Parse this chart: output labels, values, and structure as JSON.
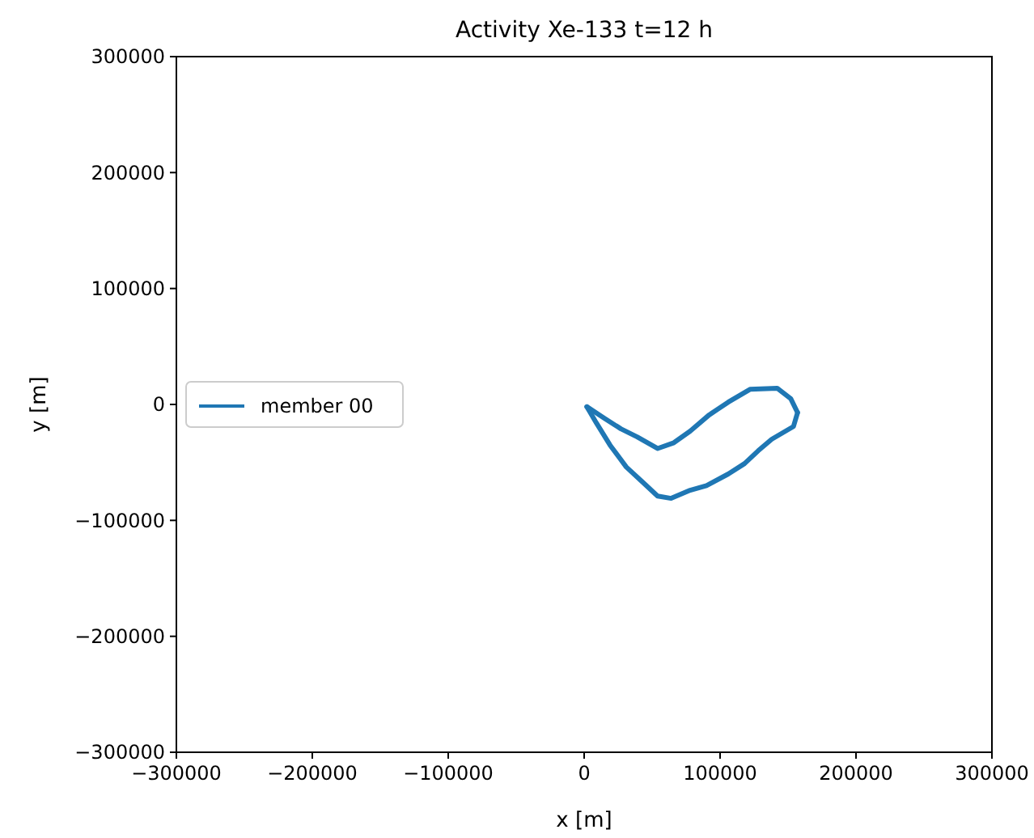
{
  "chart_data": {
    "type": "line",
    "title": "Activity Xe-133 t=12 h",
    "xlabel": "x [m]",
    "ylabel": "y [m]",
    "xlim": [
      -300000,
      300000
    ],
    "ylim": [
      -300000,
      300000
    ],
    "xticks": [
      {
        "value": -300000,
        "label": "−300000"
      },
      {
        "value": -200000,
        "label": "−200000"
      },
      {
        "value": -100000,
        "label": "−100000"
      },
      0,
      100000,
      200000,
      300000
    ],
    "yticks": [
      {
        "value": -300000,
        "label": "−300000"
      },
      {
        "value": -200000,
        "label": "−200000"
      },
      {
        "value": -100000,
        "label": "−100000"
      },
      0,
      100000,
      200000,
      300000
    ],
    "grid": false,
    "legend": "center left",
    "marker": "none",
    "line_style": "solid",
    "series": [
      {
        "name": "member 00",
        "color": "#1f77b4",
        "x": [
          2000,
          15000,
          27000,
          39000,
          54000,
          66000,
          78000,
          92000,
          106000,
          122000,
          142000,
          152000,
          157000
        ],
        "values": [
          -2000,
          -12000,
          -21000,
          -28000,
          -38000,
          -33000,
          -23000,
          -9000,
          2000,
          13000,
          14000,
          5000,
          -7000
        ]
      },
      {
        "color": "#1f77b4",
        "x": [
          2000,
          9000,
          19000,
          31000,
          43000,
          54000,
          64000,
          78000,
          90000,
          106000,
          118000,
          128000,
          138000,
          154000,
          157000
        ],
        "values": [
          -2000,
          -16000,
          -35000,
          -54000,
          -67000,
          -79000,
          -81000,
          -74000,
          -70000,
          -60000,
          -51000,
          -40000,
          -30000,
          -19000,
          -7000
        ]
      }
    ]
  }
}
